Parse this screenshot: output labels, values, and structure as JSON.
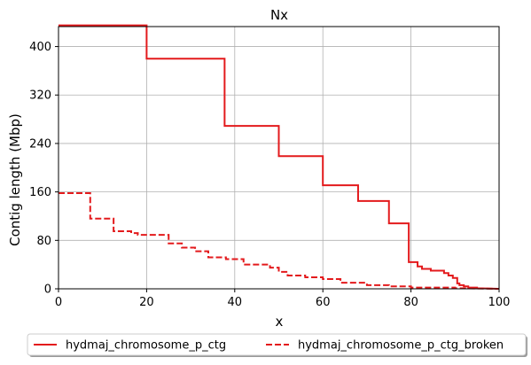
{
  "chart_data": {
    "type": "line",
    "title": "Nx",
    "xlabel": "x",
    "ylabel": "Contig length (Mbp)",
    "xlim": [
      0,
      100
    ],
    "ylim": [
      0,
      433
    ],
    "xticks": [
      0,
      20,
      40,
      60,
      80,
      100
    ],
    "yticks": [
      0,
      80,
      160,
      240,
      320,
      400
    ],
    "grid": true,
    "legend_position": "bottom-outside",
    "series": [
      {
        "name": "hydmaj_chromosome_p_ctg",
        "style": "solid",
        "color": "#e31a1c",
        "x": [
          0,
          20,
          20,
          37.7,
          37.7,
          50,
          50,
          60,
          60,
          68,
          68,
          75,
          75,
          79.5,
          79.5,
          81.5,
          81.5,
          82.5,
          82.5,
          84.5,
          84.5,
          87.5,
          87.5,
          88.5,
          88.5,
          89.5,
          89.5,
          90.5,
          90.5,
          91,
          91,
          92,
          92,
          93,
          93,
          95,
          95,
          100
        ],
        "y": [
          435,
          435,
          380,
          380,
          269,
          269,
          219,
          219,
          171,
          171,
          145,
          145,
          108,
          108,
          44,
          44,
          37,
          37,
          33,
          33,
          30,
          30,
          26,
          26,
          22,
          22,
          18,
          18,
          9,
          9,
          6,
          6,
          4,
          4,
          2,
          2,
          1,
          0
        ]
      },
      {
        "name": "hydmaj_chromosome_p_ctg_broken",
        "style": "dashed",
        "color": "#e31a1c",
        "x": [
          0,
          7.2,
          7.2,
          12.5,
          12.5,
          16.5,
          16.5,
          18,
          18,
          25,
          25,
          28,
          28,
          31,
          31,
          34,
          34,
          38,
          38,
          42,
          42,
          48,
          48,
          50,
          50,
          52,
          52,
          56,
          56,
          60,
          60,
          64,
          64,
          70,
          70,
          75,
          75,
          80,
          80,
          90,
          90,
          100
        ],
        "y": [
          158,
          158,
          116,
          116,
          95,
          95,
          92,
          92,
          89,
          89,
          75,
          75,
          68,
          68,
          62,
          62,
          52,
          52,
          49,
          49,
          40,
          40,
          35,
          35,
          28,
          28,
          22,
          22,
          19,
          19,
          16,
          16,
          10,
          10,
          6,
          6,
          4,
          4,
          2,
          2,
          1,
          0
        ]
      }
    ]
  }
}
